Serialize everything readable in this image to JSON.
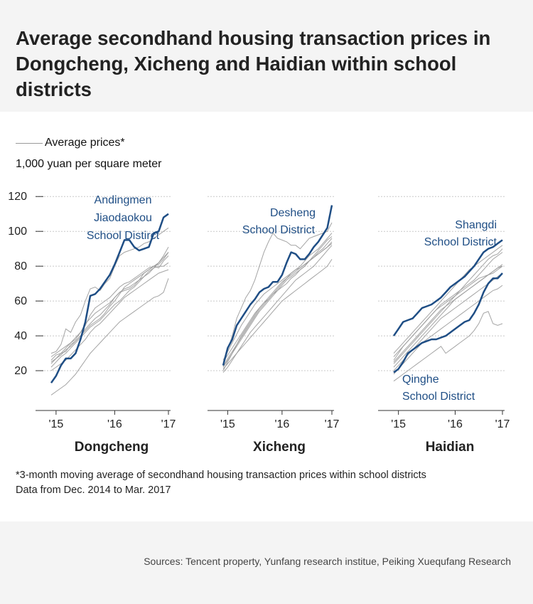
{
  "title": "Average secondhand housing transaction prices in Dongcheng, Xicheng and Haidian within school districts",
  "legend": {
    "label": "Average prices*"
  },
  "unit": "1,000 yuan per square meter",
  "footnote": [
    "*3-month moving average of secondhand housing transaction prices within school districts",
    "Data from Dec. 2014 to Mar. 2017"
  ],
  "source": "Sources: Tencent property, Yunfang research institue, Peiking Xuequfang Research",
  "colors": {
    "highlight": "#1f4e85",
    "background_lines": "#9a9a9a",
    "grid": "#c8c8c8",
    "band": "#f4f4f4"
  },
  "chart_data": [
    {
      "type": "line",
      "district": "Dongcheng",
      "x": [
        "'15",
        "'16",
        "'17"
      ],
      "ylim": [
        0,
        125
      ],
      "yticks": [
        20,
        40,
        60,
        80,
        100,
        120
      ],
      "highlight": {
        "label": [
          "Andingmen",
          "Jiaodaokou",
          "School Distirct"
        ],
        "values": [
          13,
          17,
          23,
          27,
          27,
          30,
          38,
          48,
          63,
          64,
          67,
          71,
          75,
          81,
          88,
          95,
          95,
          91,
          89,
          90,
          91,
          99,
          100,
          108,
          110
        ]
      },
      "background": [
        [
          26,
          29,
          30,
          31,
          35,
          37,
          40,
          43,
          46,
          48,
          50,
          53,
          57,
          60,
          64,
          68,
          70,
          72,
          74,
          76,
          78,
          80,
          82,
          85,
          88
        ],
        [
          30,
          31,
          35,
          44,
          42,
          48,
          52,
          60,
          67,
          68,
          66,
          70,
          73,
          80,
          86,
          88,
          89,
          90,
          91,
          93,
          94,
          96,
          98,
          100,
          102
        ],
        [
          24,
          27,
          29,
          32,
          34,
          37,
          40,
          44,
          47,
          50,
          52,
          55,
          58,
          62,
          65,
          66,
          67,
          69,
          72,
          76,
          78,
          80,
          79,
          83,
          86
        ],
        [
          22,
          25,
          28,
          30,
          33,
          36,
          39,
          42,
          45,
          47,
          49,
          52,
          55,
          58,
          60,
          63,
          66,
          68,
          71,
          74,
          77,
          79,
          80,
          80,
          82
        ],
        [
          28,
          30,
          32,
          34,
          36,
          39,
          42,
          46,
          52,
          56,
          58,
          60,
          62,
          65,
          68,
          70,
          71,
          73,
          75,
          77,
          79,
          80,
          81,
          84,
          88
        ],
        [
          25,
          27,
          30,
          33,
          36,
          38,
          42,
          47,
          50,
          53,
          55,
          57,
          59,
          62,
          65,
          67,
          68,
          70,
          72,
          74,
          76,
          79,
          82,
          86,
          91
        ],
        [
          20,
          22,
          24,
          26,
          29,
          32,
          35,
          38,
          42,
          45,
          47,
          50,
          53,
          56,
          59,
          62,
          64,
          66,
          68,
          70,
          72,
          74,
          76,
          77,
          78
        ],
        [
          6,
          8,
          10,
          12,
          15,
          18,
          22,
          26,
          30,
          33,
          36,
          39,
          42,
          45,
          48,
          50,
          52,
          54,
          56,
          58,
          60,
          62,
          63,
          65,
          73
        ]
      ]
    },
    {
      "type": "line",
      "district": "Xicheng",
      "x": [
        "'15",
        "'16",
        "'17"
      ],
      "ylim": [
        0,
        125
      ],
      "yticks": [
        20,
        40,
        60,
        80,
        100,
        120
      ],
      "highlight": {
        "label": [
          "Desheng",
          "School District"
        ],
        "values": [
          23,
          33,
          38,
          46,
          50,
          54,
          58,
          61,
          65,
          67,
          68,
          71,
          71,
          75,
          82,
          88,
          87,
          84,
          84,
          87,
          91,
          94,
          98,
          102,
          115
        ]
      },
      "background": [
        [
          24,
          32,
          40,
          50,
          56,
          62,
          66,
          72,
          80,
          88,
          94,
          99,
          96,
          95,
          94,
          92,
          92,
          90,
          93,
          96,
          97,
          98,
          99,
          100,
          105
        ],
        [
          26,
          31,
          36,
          41,
          46,
          50,
          54,
          58,
          61,
          64,
          66,
          68,
          70,
          72,
          74,
          76,
          78,
          80,
          83,
          86,
          88,
          90,
          93,
          96,
          99
        ],
        [
          20,
          25,
          30,
          35,
          40,
          44,
          48,
          52,
          56,
          59,
          61,
          64,
          66,
          69,
          72,
          74,
          76,
          78,
          80,
          83,
          85,
          88,
          90,
          93,
          96
        ],
        [
          22,
          27,
          31,
          35,
          39,
          43,
          47,
          51,
          55,
          58,
          61,
          64,
          67,
          70,
          73,
          76,
          78,
          79,
          81,
          83,
          85,
          87,
          89,
          91,
          93
        ],
        [
          19,
          22,
          26,
          30,
          34,
          38,
          42,
          45,
          48,
          51,
          54,
          57,
          60,
          63,
          66,
          69,
          72,
          74,
          76,
          78,
          80,
          83,
          86,
          89,
          92
        ],
        [
          25,
          29,
          33,
          37,
          41,
          45,
          49,
          53,
          56,
          59,
          62,
          65,
          68,
          71,
          73,
          75,
          77,
          79,
          81,
          83,
          85,
          87,
          89,
          91,
          94
        ],
        [
          21,
          24,
          27,
          30,
          33,
          36,
          39,
          42,
          45,
          48,
          51,
          54,
          57,
          60,
          62,
          64,
          66,
          68,
          70,
          72,
          74,
          76,
          78,
          80,
          84
        ],
        [
          22,
          26,
          30,
          34,
          38,
          42,
          46,
          50,
          54,
          57,
          60,
          63,
          66,
          68,
          70,
          73,
          75,
          78,
          80,
          83,
          86,
          89,
          92,
          95,
          97
        ]
      ]
    },
    {
      "type": "line",
      "district": "Haidian",
      "x": [
        "'15",
        "'16",
        "'17"
      ],
      "ylim": [
        0,
        125
      ],
      "yticks": [
        20,
        40,
        60,
        80,
        100,
        120
      ],
      "highlight": {
        "label": [
          "Shangdi",
          "School District"
        ],
        "values": [
          40,
          44,
          48,
          49,
          50,
          53,
          56,
          57,
          58,
          60,
          62,
          65,
          68,
          70,
          72,
          74,
          77,
          80,
          84,
          88,
          90,
          91,
          93,
          95
        ]
      },
      "highlight2": {
        "label": [
          "Qinghe",
          "School District"
        ],
        "values": [
          19,
          21,
          25,
          30,
          32,
          34,
          36,
          37,
          38,
          38,
          39,
          40,
          42,
          44,
          46,
          48,
          49,
          53,
          58,
          65,
          70,
          73,
          73,
          76
        ]
      },
      "background": [
        [
          26,
          30,
          34,
          37,
          40,
          43,
          46,
          49,
          52,
          55,
          58,
          60,
          62,
          64,
          66,
          68,
          70,
          72,
          75,
          78,
          81,
          84,
          86,
          88
        ],
        [
          30,
          33,
          36,
          39,
          42,
          45,
          48,
          51,
          54,
          57,
          60,
          63,
          66,
          69,
          72,
          75,
          78,
          80,
          82,
          84,
          86,
          88,
          90,
          92
        ],
        [
          24,
          27,
          30,
          33,
          36,
          39,
          42,
          45,
          48,
          51,
          54,
          57,
          60,
          63,
          66,
          69,
          72,
          75,
          78,
          81,
          84,
          86,
          87,
          90
        ],
        [
          22,
          25,
          28,
          31,
          34,
          37,
          40,
          43,
          46,
          49,
          52,
          55,
          58,
          61,
          63,
          65,
          67,
          69,
          71,
          73,
          75,
          77,
          79,
          81
        ],
        [
          28,
          31,
          34,
          37,
          40,
          43,
          46,
          49,
          52,
          55,
          57,
          59,
          61,
          63,
          65,
          67,
          69,
          71,
          73,
          74,
          75,
          76,
          78,
          80
        ],
        [
          25,
          28,
          31,
          34,
          37,
          40,
          43,
          46,
          49,
          52,
          55,
          57,
          59,
          61,
          63,
          65,
          67,
          69,
          71,
          73,
          75,
          77,
          79,
          80
        ],
        [
          20,
          23,
          26,
          29,
          32,
          35,
          38,
          41,
          44,
          47,
          50,
          52,
          54,
          56,
          58,
          60,
          62,
          64,
          66,
          68,
          70,
          72,
          74,
          76
        ],
        [
          18,
          21,
          24,
          27,
          30,
          33,
          36,
          38,
          40,
          42,
          44,
          46,
          48,
          50,
          52,
          54,
          56,
          58,
          60,
          62,
          64,
          66,
          67,
          69
        ],
        [
          14,
          16,
          18,
          20,
          22,
          24,
          26,
          28,
          30,
          32,
          34,
          30,
          32,
          34,
          36,
          38,
          40,
          43,
          47,
          53,
          54,
          47,
          46,
          47
        ]
      ]
    }
  ]
}
